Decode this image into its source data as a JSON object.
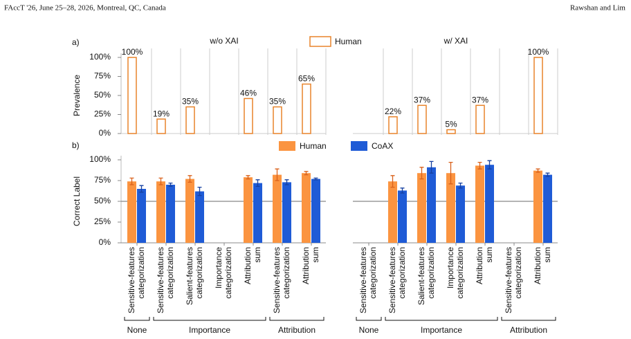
{
  "header": {
    "left": "FAccT '26, June 25–28, 2026, Montreal, QC, Canada",
    "right": "Rawshan and Lim"
  },
  "chart_data": [
    {
      "type": "bar",
      "panel_label": "a)",
      "ylabel": "Prevalence",
      "facets": [
        "w/o XAI",
        "w/ XAI"
      ],
      "series": [
        {
          "name": "Human",
          "color": "#e8832a",
          "fill": "none",
          "values": [
            100,
            19,
            35,
            null,
            46,
            35,
            65,
            null,
            22,
            37,
            5,
            37,
            null,
            100
          ],
          "value_labels": [
            "100%",
            "19%",
            "35%",
            null,
            "46%",
            "35%",
            "65%",
            null,
            "22%",
            "37%",
            "5%",
            "37%",
            null,
            "100%"
          ]
        }
      ],
      "ylim": [
        0,
        100
      ],
      "yticks": [
        {
          "value": 0,
          "label": "0%"
        },
        {
          "value": 25,
          "label": "25%"
        },
        {
          "value": 50,
          "label": "50%"
        },
        {
          "value": 75,
          "label": "75%"
        },
        {
          "value": 100,
          "label": "100%"
        }
      ]
    },
    {
      "type": "bar",
      "panel_label": "b)",
      "ylabel": "Correct Label",
      "categories": [
        [
          "Sensitive-features",
          "categorization"
        ],
        [
          "Sensitive-features",
          "categorization"
        ],
        [
          "Salient-features",
          "categorization"
        ],
        [
          "Importance",
          "categorization"
        ],
        [
          "Attribution",
          "sum"
        ],
        [
          "Sensitive-features",
          "categorization"
        ],
        [
          "Attribution",
          "sum"
        ],
        [
          "Sensitive-features",
          "categorization"
        ],
        [
          "Sensitive-features",
          "categorization"
        ],
        [
          "Salient-features",
          "categorization"
        ],
        [
          "Importance",
          "categorization"
        ],
        [
          "Attribution",
          "sum"
        ],
        [
          "Sensitive-features",
          "categorization"
        ],
        [
          "Attribution",
          "sum"
        ]
      ],
      "category_groups": [
        "None",
        "Importance",
        "Importance",
        "Importance",
        "Importance",
        "Attribution",
        "Attribution",
        "None",
        "Importance",
        "Importance",
        "Importance",
        "Importance",
        "Attribution",
        "Attribution"
      ],
      "series": [
        {
          "name": "Human",
          "color": "#fb9440",
          "error_color": "#d9601a",
          "values": [
            74,
            74,
            77,
            null,
            79,
            82,
            84,
            null,
            74,
            84,
            84,
            93,
            null,
            87
          ],
          "errors": [
            4,
            4,
            4,
            null,
            2,
            7,
            2,
            null,
            7,
            7,
            13,
            4,
            null,
            2
          ]
        },
        {
          "name": "CoAX",
          "color": "#1f5bd6",
          "error_color": "#1640a0",
          "values": [
            65,
            70,
            62,
            null,
            72,
            73,
            77,
            null,
            63,
            91,
            69,
            94,
            null,
            82
          ],
          "errors": [
            4,
            2,
            5,
            null,
            4,
            3,
            1,
            null,
            3,
            7,
            3,
            5,
            null,
            2
          ]
        }
      ],
      "reference_line": 50,
      "ylim": [
        0,
        100
      ],
      "yticks": [
        {
          "value": 0,
          "label": "0%"
        },
        {
          "value": 25,
          "label": "25%"
        },
        {
          "value": 50,
          "label": "50%"
        },
        {
          "value": 75,
          "label": "75%"
        },
        {
          "value": 100,
          "label": "100%"
        }
      ]
    }
  ]
}
